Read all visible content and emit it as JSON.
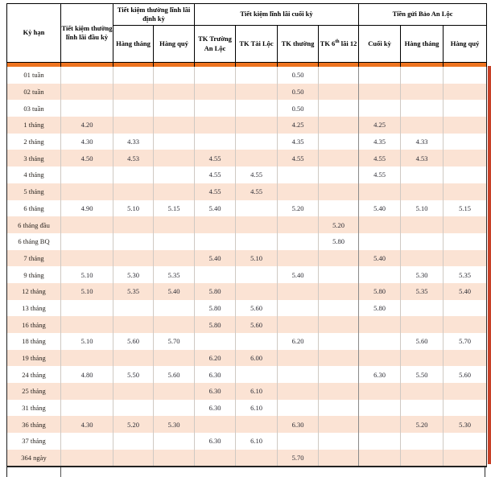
{
  "colors": {
    "orange_bar": "#EE7420",
    "peach_row": "#FBE3D4",
    "header_border": "#000000",
    "light_grid": "#CFC9C3",
    "dark_grid": "#8A8A8A",
    "right_edge_strip": "#C84128",
    "text": "#2B2B33"
  },
  "table": {
    "header": {
      "ky_han": "Kỳ hạn",
      "dau_ky": "Tiết kiệm thường lĩnh lãi đầu kỳ",
      "group_dinh_ky": "Tiết kiệm thường lĩnh lãi định kỳ",
      "group_cuoi_ky": "Tiết kiệm lĩnh lãi cuối kỳ",
      "group_bao_an_loc": "Tiền gửi Bảo An Lộc",
      "sub": {
        "hang_thang_dk": "Hàng tháng",
        "hang_quy_dk": "Hàng quý",
        "tk_truong_an_loc": "TK Trường An Lộc",
        "tk_tai_loc": "TK Tài Lộc",
        "tk_thuong": "TK thường",
        "tk6": {
          "pre": "TK 6",
          "sup": "th",
          "post": "lãi 12"
        },
        "cuoi_ky": "Cuối kỳ",
        "hang_thang_bal": "Hàng tháng",
        "hang_quy_bal": "Hàng quý"
      }
    },
    "value_columns_order": [
      "dau_ky",
      "hang_thang_dinh_ky",
      "hang_quy_dinh_ky",
      "tk_truong_an_loc",
      "tk_tai_loc",
      "tk_thuong",
      "tk_6th_lai_12",
      "cuoi_ky",
      "hang_thang_bao_an_loc",
      "hang_quy_bao_an_loc"
    ],
    "rows": [
      {
        "term": "01 tuần",
        "values": [
          "",
          "",
          "",
          "",
          "",
          "0.50",
          "",
          "",
          "",
          ""
        ]
      },
      {
        "term": "02 tuần",
        "values": [
          "",
          "",
          "",
          "",
          "",
          "0.50",
          "",
          "",
          "",
          ""
        ]
      },
      {
        "term": "03 tuần",
        "values": [
          "",
          "",
          "",
          "",
          "",
          "0.50",
          "",
          "",
          "",
          ""
        ]
      },
      {
        "term": "1 tháng",
        "values": [
          "4.20",
          "",
          "",
          "",
          "",
          "4.25",
          "",
          "4.25",
          "",
          ""
        ]
      },
      {
        "term": "2 tháng",
        "values": [
          "4.30",
          "4.33",
          "",
          "",
          "",
          "4.35",
          "",
          "4.35",
          "4.33",
          ""
        ]
      },
      {
        "term": "3 tháng",
        "values": [
          "4.50",
          "4.53",
          "",
          "4.55",
          "",
          "4.55",
          "",
          "4.55",
          "4.53",
          ""
        ]
      },
      {
        "term": "4 tháng",
        "values": [
          "",
          "",
          "",
          "4.55",
          "4.55",
          "",
          "",
          "4.55",
          "",
          ""
        ]
      },
      {
        "term": "5 tháng",
        "values": [
          "",
          "",
          "",
          "4.55",
          "4.55",
          "",
          "",
          "",
          "",
          ""
        ]
      },
      {
        "term": "6 tháng",
        "values": [
          "4.90",
          "5.10",
          "5.15",
          "5.40",
          "",
          "5.20",
          "",
          "5.40",
          "5.10",
          "5.15"
        ]
      },
      {
        "term": "6 tháng đầu",
        "values": [
          "",
          "",
          "",
          "",
          "",
          "",
          "5.20",
          "",
          "",
          ""
        ]
      },
      {
        "term": "6 tháng BQ",
        "values": [
          "",
          "",
          "",
          "",
          "",
          "",
          "5.80",
          "",
          "",
          ""
        ]
      },
      {
        "term": "7 tháng",
        "values": [
          "",
          "",
          "",
          "5.40",
          "5.10",
          "",
          "",
          "5.40",
          "",
          ""
        ]
      },
      {
        "term": "9 tháng",
        "values": [
          "5.10",
          "5.30",
          "5.35",
          "",
          "",
          "5.40",
          "",
          "",
          "5.30",
          "5.35"
        ]
      },
      {
        "term": "12 tháng",
        "values": [
          "5.10",
          "5.35",
          "5.40",
          "5.80",
          "",
          "",
          "",
          "5.80",
          "5.35",
          "5.40"
        ]
      },
      {
        "term": "13 tháng",
        "values": [
          "",
          "",
          "",
          "5.80",
          "5.60",
          "",
          "",
          "5.80",
          "",
          ""
        ]
      },
      {
        "term": "16 tháng",
        "values": [
          "",
          "",
          "",
          "5.80",
          "5.60",
          "",
          "",
          "",
          "",
          ""
        ]
      },
      {
        "term": "18 tháng",
        "values": [
          "5.10",
          "5.60",
          "5.70",
          "",
          "",
          "6.20",
          "",
          "",
          "5.60",
          "5.70"
        ]
      },
      {
        "term": "19 tháng",
        "values": [
          "",
          "",
          "",
          "6.20",
          "6.00",
          "",
          "",
          "",
          "",
          ""
        ]
      },
      {
        "term": "24 tháng",
        "values": [
          "4.80",
          "5.50",
          "5.60",
          "6.30",
          "",
          "",
          "",
          "6.30",
          "5.50",
          "5.60"
        ]
      },
      {
        "term": "25 tháng",
        "values": [
          "",
          "",
          "",
          "6.30",
          "6.10",
          "",
          "",
          "",
          "",
          ""
        ]
      },
      {
        "term": "31 tháng",
        "values": [
          "",
          "",
          "",
          "6.30",
          "6.10",
          "",
          "",
          "",
          "",
          ""
        ]
      },
      {
        "term": "36 tháng",
        "values": [
          "4.30",
          "5.20",
          "5.30",
          "",
          "",
          "6.30",
          "",
          "",
          "5.20",
          "5.30"
        ]
      },
      {
        "term": "37 tháng",
        "values": [
          "",
          "",
          "",
          "6.30",
          "6.10",
          "",
          "",
          "",
          "",
          ""
        ]
      },
      {
        "term": "364 ngày",
        "values": [
          "",
          "",
          "",
          "",
          "",
          "5.70",
          "",
          "",
          "",
          ""
        ]
      }
    ]
  }
}
